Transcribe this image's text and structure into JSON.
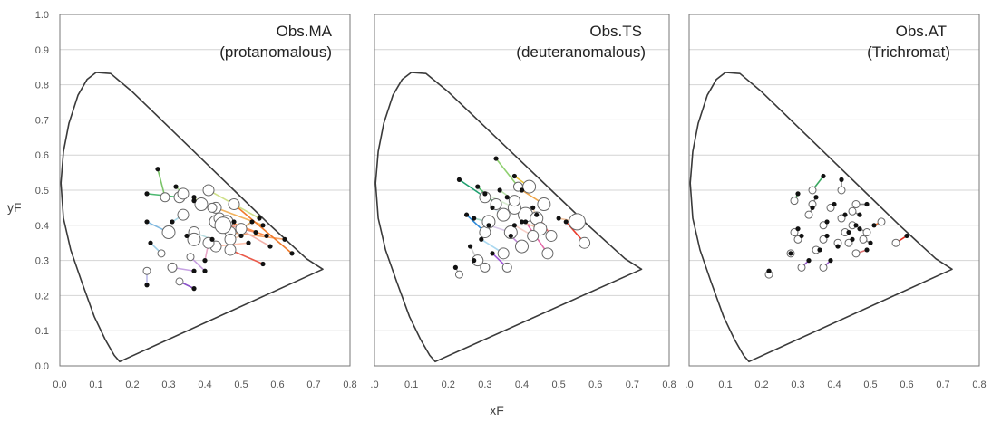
{
  "figure": {
    "y_axis_label": "yF",
    "x_axis_label": "xF",
    "y_ticks": [
      "1.0",
      "0.9",
      "0.8",
      "0.7",
      "0.6",
      "0.5",
      "0.4",
      "0.3",
      "0.2",
      "0.1",
      "0.0"
    ],
    "colors": {
      "axis": "#777777",
      "grid": "#d4d4d4",
      "locus": "#3a3a3a",
      "filled": "#111111",
      "open": "#ffffff"
    }
  },
  "chart_data": [
    {
      "type": "scatter",
      "title": "Obs.MA\n(protanomalous)",
      "title_lines": [
        "Obs.MA",
        "(protanomalous)"
      ],
      "x_ticks": [
        "0.0",
        "0.1",
        "0.2",
        "0.3",
        "0.4",
        "0.5",
        "0.6",
        "0.7",
        "0.8"
      ],
      "xlim": [
        0,
        0.8
      ],
      "ylim": [
        0,
        1.0
      ],
      "grid": true,
      "pairs": [
        {
          "open": [
            0.29,
            0.48
          ],
          "filled": [
            0.27,
            0.56
          ],
          "color": "#7cc46a",
          "size": 5
        },
        {
          "open": [
            0.33,
            0.48
          ],
          "filled": [
            0.24,
            0.49
          ],
          "color": "#4cb870",
          "size": 6
        },
        {
          "open": [
            0.3,
            0.38
          ],
          "filled": [
            0.24,
            0.41
          ],
          "color": "#7fb8e0",
          "size": 7
        },
        {
          "open": [
            0.28,
            0.32
          ],
          "filled": [
            0.25,
            0.35
          ],
          "color": "#9fcfe8",
          "size": 4
        },
        {
          "open": [
            0.24,
            0.27
          ],
          "filled": [
            0.24,
            0.23
          ],
          "color": "#b7b7e8",
          "size": 4
        },
        {
          "open": [
            0.31,
            0.28
          ],
          "filled": [
            0.37,
            0.27
          ],
          "color": "#c6a2e2",
          "size": 5
        },
        {
          "open": [
            0.33,
            0.24
          ],
          "filled": [
            0.37,
            0.22
          ],
          "color": "#8a52c8",
          "size": 4
        },
        {
          "open": [
            0.36,
            0.31
          ],
          "filled": [
            0.4,
            0.27
          ],
          "color": "#c79fe0",
          "size": 4
        },
        {
          "open": [
            0.34,
            0.43
          ],
          "filled": [
            0.31,
            0.41
          ],
          "color": "#aad8e8",
          "size": 6
        },
        {
          "open": [
            0.34,
            0.49
          ],
          "filled": [
            0.32,
            0.51
          ],
          "color": "#a9dd93",
          "size": 6
        },
        {
          "open": [
            0.41,
            0.5
          ],
          "filled": [
            0.55,
            0.42
          ],
          "color": "#cfe08a",
          "size": 6
        },
        {
          "open": [
            0.39,
            0.46
          ],
          "filled": [
            0.37,
            0.48
          ],
          "color": "#d7ee9a",
          "size": 7
        },
        {
          "open": [
            0.43,
            0.45
          ],
          "filled": [
            0.56,
            0.4
          ],
          "color": "#f2b35e",
          "size": 6
        },
        {
          "open": [
            0.43,
            0.41
          ],
          "filled": [
            0.54,
            0.38
          ],
          "color": "#f08a6a",
          "size": 7
        },
        {
          "open": [
            0.44,
            0.42
          ],
          "filled": [
            0.57,
            0.37
          ],
          "color": "#ff8c4a",
          "size": 6
        },
        {
          "open": [
            0.47,
            0.38
          ],
          "filled": [
            0.62,
            0.36
          ],
          "color": "#f5a46a",
          "size": 6
        },
        {
          "open": [
            0.48,
            0.46
          ],
          "filled": [
            0.64,
            0.32
          ],
          "color": "#f07a2a",
          "size": 6
        },
        {
          "open": [
            0.46,
            0.41
          ],
          "filled": [
            0.58,
            0.34
          ],
          "color": "#f2b0a8",
          "size": 7
        },
        {
          "open": [
            0.47,
            0.36
          ],
          "filled": [
            0.5,
            0.37
          ],
          "color": "#f6d2b8",
          "size": 6
        },
        {
          "open": [
            0.43,
            0.34
          ],
          "filled": [
            0.52,
            0.35
          ],
          "color": "#ffc4b0",
          "size": 6
        },
        {
          "open": [
            0.47,
            0.33
          ],
          "filled": [
            0.56,
            0.29
          ],
          "color": "#ea5a4a",
          "size": 6
        },
        {
          "open": [
            0.41,
            0.35
          ],
          "filled": [
            0.4,
            0.3
          ],
          "color": "#e8a8c8",
          "size": 6
        },
        {
          "open": [
            0.37,
            0.38
          ],
          "filled": [
            0.42,
            0.36
          ],
          "color": "#b8dce0",
          "size": 6
        },
        {
          "open": [
            0.37,
            0.36
          ],
          "filled": [
            0.35,
            0.37
          ],
          "color": "#cccccc",
          "size": 7
        },
        {
          "open": [
            0.5,
            0.39
          ],
          "filled": [
            0.53,
            0.41
          ],
          "color": "#d4a060",
          "size": 6
        },
        {
          "open": [
            0.45,
            0.4
          ],
          "filled": [
            0.48,
            0.41
          ],
          "color": "#c47ab0",
          "size": 9
        },
        {
          "open": [
            0.42,
            0.45
          ],
          "filled": [
            0.37,
            0.47
          ],
          "color": "#6fc58a",
          "size": 5
        }
      ]
    },
    {
      "type": "scatter",
      "title": "Obs.TS\n(deuteranomalous)",
      "title_lines": [
        "Obs.TS",
        "(deuteranomalous)"
      ],
      "x_ticks": [
        ".0",
        "0.1",
        "0.2",
        "0.3",
        "0.4",
        "0.5",
        "0.6",
        "0.7",
        "0.8"
      ],
      "xlim": [
        0,
        0.8
      ],
      "ylim": [
        0,
        1.0
      ],
      "grid": true,
      "pairs": [
        {
          "open": [
            0.23,
            0.26
          ],
          "filled": [
            0.22,
            0.28
          ],
          "color": "#b3b3b3",
          "size": 4
        },
        {
          "open": [
            0.28,
            0.3
          ],
          "filled": [
            0.26,
            0.34
          ],
          "color": "#cccccc",
          "size": 6
        },
        {
          "open": [
            0.3,
            0.28
          ],
          "filled": [
            0.27,
            0.3
          ],
          "color": "#cfa8e6",
          "size": 5
        },
        {
          "open": [
            0.36,
            0.28
          ],
          "filled": [
            0.32,
            0.32
          ],
          "color": "#a055d8",
          "size": 5
        },
        {
          "open": [
            0.35,
            0.32
          ],
          "filled": [
            0.29,
            0.36
          ],
          "color": "#aad8f0",
          "size": 6
        },
        {
          "open": [
            0.3,
            0.38
          ],
          "filled": [
            0.25,
            0.43
          ],
          "color": "#2b88d8",
          "size": 6
        },
        {
          "open": [
            0.3,
            0.48
          ],
          "filled": [
            0.23,
            0.53
          ],
          "color": "#1fa070",
          "size": 6
        },
        {
          "open": [
            0.33,
            0.46
          ],
          "filled": [
            0.28,
            0.51
          ],
          "color": "#4cba65",
          "size": 6
        },
        {
          "open": [
            0.39,
            0.51
          ],
          "filled": [
            0.33,
            0.59
          ],
          "color": "#8fd070",
          "size": 5
        },
        {
          "open": [
            0.42,
            0.51
          ],
          "filled": [
            0.38,
            0.54
          ],
          "color": "#e7c238",
          "size": 7
        },
        {
          "open": [
            0.46,
            0.46
          ],
          "filled": [
            0.4,
            0.5
          ],
          "color": "#f0a64a",
          "size": 7
        },
        {
          "open": [
            0.41,
            0.43
          ],
          "filled": [
            0.36,
            0.48
          ],
          "color": "#c8dde4",
          "size": 8
        },
        {
          "open": [
            0.44,
            0.42
          ],
          "filled": [
            0.43,
            0.45
          ],
          "color": "#f7d8b8",
          "size": 7
        },
        {
          "open": [
            0.55,
            0.41
          ],
          "filled": [
            0.5,
            0.42
          ],
          "color": "#f4c4a0",
          "size": 9
        },
        {
          "open": [
            0.57,
            0.35
          ],
          "filled": [
            0.52,
            0.41
          ],
          "color": "#ea3b2a",
          "size": 6
        },
        {
          "open": [
            0.48,
            0.37
          ],
          "filled": [
            0.44,
            0.43
          ],
          "color": "#f06a6a",
          "size": 6
        },
        {
          "open": [
            0.47,
            0.32
          ],
          "filled": [
            0.41,
            0.41
          ],
          "color": "#e46aa8",
          "size": 6
        },
        {
          "open": [
            0.4,
            0.34
          ],
          "filled": [
            0.37,
            0.37
          ],
          "color": "#c08ad8",
          "size": 7
        },
        {
          "open": [
            0.37,
            0.38
          ],
          "filled": [
            0.31,
            0.4
          ],
          "color": "#d8c8e8",
          "size": 7
        },
        {
          "open": [
            0.35,
            0.43
          ],
          "filled": [
            0.32,
            0.45
          ],
          "color": "#d8e8f0",
          "size": 7
        },
        {
          "open": [
            0.31,
            0.41
          ],
          "filled": [
            0.27,
            0.42
          ],
          "color": "#a8d8c8",
          "size": 7
        },
        {
          "open": [
            0.38,
            0.45
          ],
          "filled": [
            0.3,
            0.49
          ],
          "color": "#d8ecd0",
          "size": 7
        },
        {
          "open": [
            0.45,
            0.39
          ],
          "filled": [
            0.4,
            0.41
          ],
          "color": "#f2c0a8",
          "size": 7
        },
        {
          "open": [
            0.43,
            0.37
          ],
          "filled": [
            0.38,
            0.4
          ],
          "color": "#f8d0c8",
          "size": 6
        },
        {
          "open": [
            0.38,
            0.47
          ],
          "filled": [
            0.34,
            0.5
          ],
          "color": "#b8e0a8",
          "size": 6
        }
      ]
    },
    {
      "type": "scatter",
      "title": "Obs.AT\n(Trichromat)",
      "title_lines": [
        "Obs.AT",
        "(Trichromat)"
      ],
      "x_ticks": [
        ".0",
        "0.1",
        "0.2",
        "0.3",
        "0.4",
        "0.5",
        "0.6",
        "0.7",
        "0.8"
      ],
      "xlim": [
        0,
        0.8
      ],
      "ylim": [
        0,
        1.0
      ],
      "grid": true,
      "pairs": [
        {
          "open": [
            0.22,
            0.26
          ],
          "filled": [
            0.22,
            0.27
          ],
          "color": "#999999",
          "size": 4
        },
        {
          "open": [
            0.28,
            0.32
          ],
          "filled": [
            0.28,
            0.32
          ],
          "color": "#999999",
          "size": 4
        },
        {
          "open": [
            0.29,
            0.47
          ],
          "filled": [
            0.3,
            0.49
          ],
          "color": "#3a9a48",
          "size": 4
        },
        {
          "open": [
            0.34,
            0.5
          ],
          "filled": [
            0.37,
            0.54
          ],
          "color": "#3aa860",
          "size": 4
        },
        {
          "open": [
            0.34,
            0.46
          ],
          "filled": [
            0.35,
            0.48
          ],
          "color": "#888888",
          "size": 4
        },
        {
          "open": [
            0.33,
            0.43
          ],
          "filled": [
            0.34,
            0.45
          ],
          "color": "#888888",
          "size": 4
        },
        {
          "open": [
            0.29,
            0.38
          ],
          "filled": [
            0.3,
            0.39
          ],
          "color": "#2b7ed8",
          "size": 4
        },
        {
          "open": [
            0.3,
            0.36
          ],
          "filled": [
            0.31,
            0.37
          ],
          "color": "#888888",
          "size": 4
        },
        {
          "open": [
            0.31,
            0.28
          ],
          "filled": [
            0.33,
            0.3
          ],
          "color": "#9a5ad0",
          "size": 4
        },
        {
          "open": [
            0.37,
            0.28
          ],
          "filled": [
            0.39,
            0.3
          ],
          "color": "#9a5ad0",
          "size": 4
        },
        {
          "open": [
            0.35,
            0.33
          ],
          "filled": [
            0.36,
            0.33
          ],
          "color": "#888888",
          "size": 4
        },
        {
          "open": [
            0.37,
            0.36
          ],
          "filled": [
            0.38,
            0.37
          ],
          "color": "#888888",
          "size": 4
        },
        {
          "open": [
            0.37,
            0.4
          ],
          "filled": [
            0.38,
            0.41
          ],
          "color": "#888888",
          "size": 4
        },
        {
          "open": [
            0.39,
            0.45
          ],
          "filled": [
            0.4,
            0.46
          ],
          "color": "#888888",
          "size": 4
        },
        {
          "open": [
            0.42,
            0.5
          ],
          "filled": [
            0.42,
            0.53
          ],
          "color": "#888888",
          "size": 4
        },
        {
          "open": [
            0.42,
            0.42
          ],
          "filled": [
            0.43,
            0.43
          ],
          "color": "#888888",
          "size": 4
        },
        {
          "open": [
            0.43,
            0.38
          ],
          "filled": [
            0.44,
            0.38
          ],
          "color": "#888888",
          "size": 4
        },
        {
          "open": [
            0.45,
            0.44
          ],
          "filled": [
            0.47,
            0.43
          ],
          "color": "#888888",
          "size": 4
        },
        {
          "open": [
            0.45,
            0.4
          ],
          "filled": [
            0.46,
            0.4
          ],
          "color": "#888888",
          "size": 4
        },
        {
          "open": [
            0.46,
            0.46
          ],
          "filled": [
            0.49,
            0.46
          ],
          "color": "#888888",
          "size": 4
        },
        {
          "open": [
            0.44,
            0.35
          ],
          "filled": [
            0.45,
            0.36
          ],
          "color": "#888888",
          "size": 4
        },
        {
          "open": [
            0.46,
            0.32
          ],
          "filled": [
            0.49,
            0.33
          ],
          "color": "#e07070",
          "size": 4
        },
        {
          "open": [
            0.49,
            0.38
          ],
          "filled": [
            0.47,
            0.39
          ],
          "color": "#888888",
          "size": 4
        },
        {
          "open": [
            0.53,
            0.41
          ],
          "filled": [
            0.51,
            0.4
          ],
          "color": "#f07030",
          "size": 4
        },
        {
          "open": [
            0.57,
            0.35
          ],
          "filled": [
            0.6,
            0.37
          ],
          "color": "#e03020",
          "size": 4
        },
        {
          "open": [
            0.48,
            0.36
          ],
          "filled": [
            0.5,
            0.35
          ],
          "color": "#888888",
          "size": 4
        },
        {
          "open": [
            0.41,
            0.35
          ],
          "filled": [
            0.41,
            0.34
          ],
          "color": "#888888",
          "size": 4
        }
      ]
    }
  ]
}
